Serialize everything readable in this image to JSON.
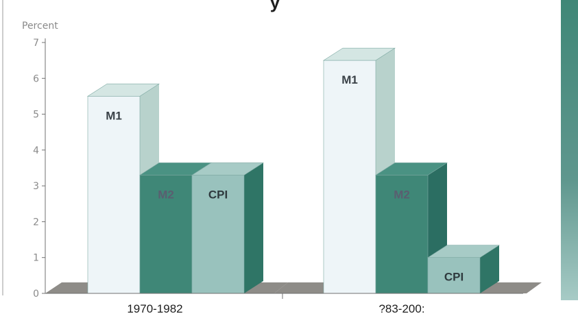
{
  "chart_data": {
    "type": "bar",
    "title": "y",
    "ylabel": "Percent",
    "ylim": [
      0,
      7
    ],
    "yticks": [
      0,
      1,
      2,
      3,
      4,
      5,
      6,
      7
    ],
    "categories": [
      "1970-1982",
      "?83-200:"
    ],
    "series": [
      {
        "name": "M1",
        "values": [
          5.5,
          6.5
        ]
      },
      {
        "name": "M2",
        "values": [
          3.3,
          3.3
        ]
      },
      {
        "name": "CPI",
        "values": [
          3.3,
          1.0
        ]
      }
    ],
    "colors": {
      "M1": {
        "front": "#eef5f8",
        "side": "#b8d2cc",
        "top": "#d4e6e3",
        "label": "#3a4248"
      },
      "M2": {
        "front": "#3f8777",
        "side": "#2b6e62",
        "top": "#4a9283",
        "label": "#5a5e70"
      },
      "CPI": {
        "front": "#99c2bd",
        "side": "#2f7566",
        "top": "#a7cbc6",
        "label": "#2f3a3e"
      },
      "floor": "#8e8c88",
      "right_strip": "#5f978e"
    },
    "grid": false
  }
}
